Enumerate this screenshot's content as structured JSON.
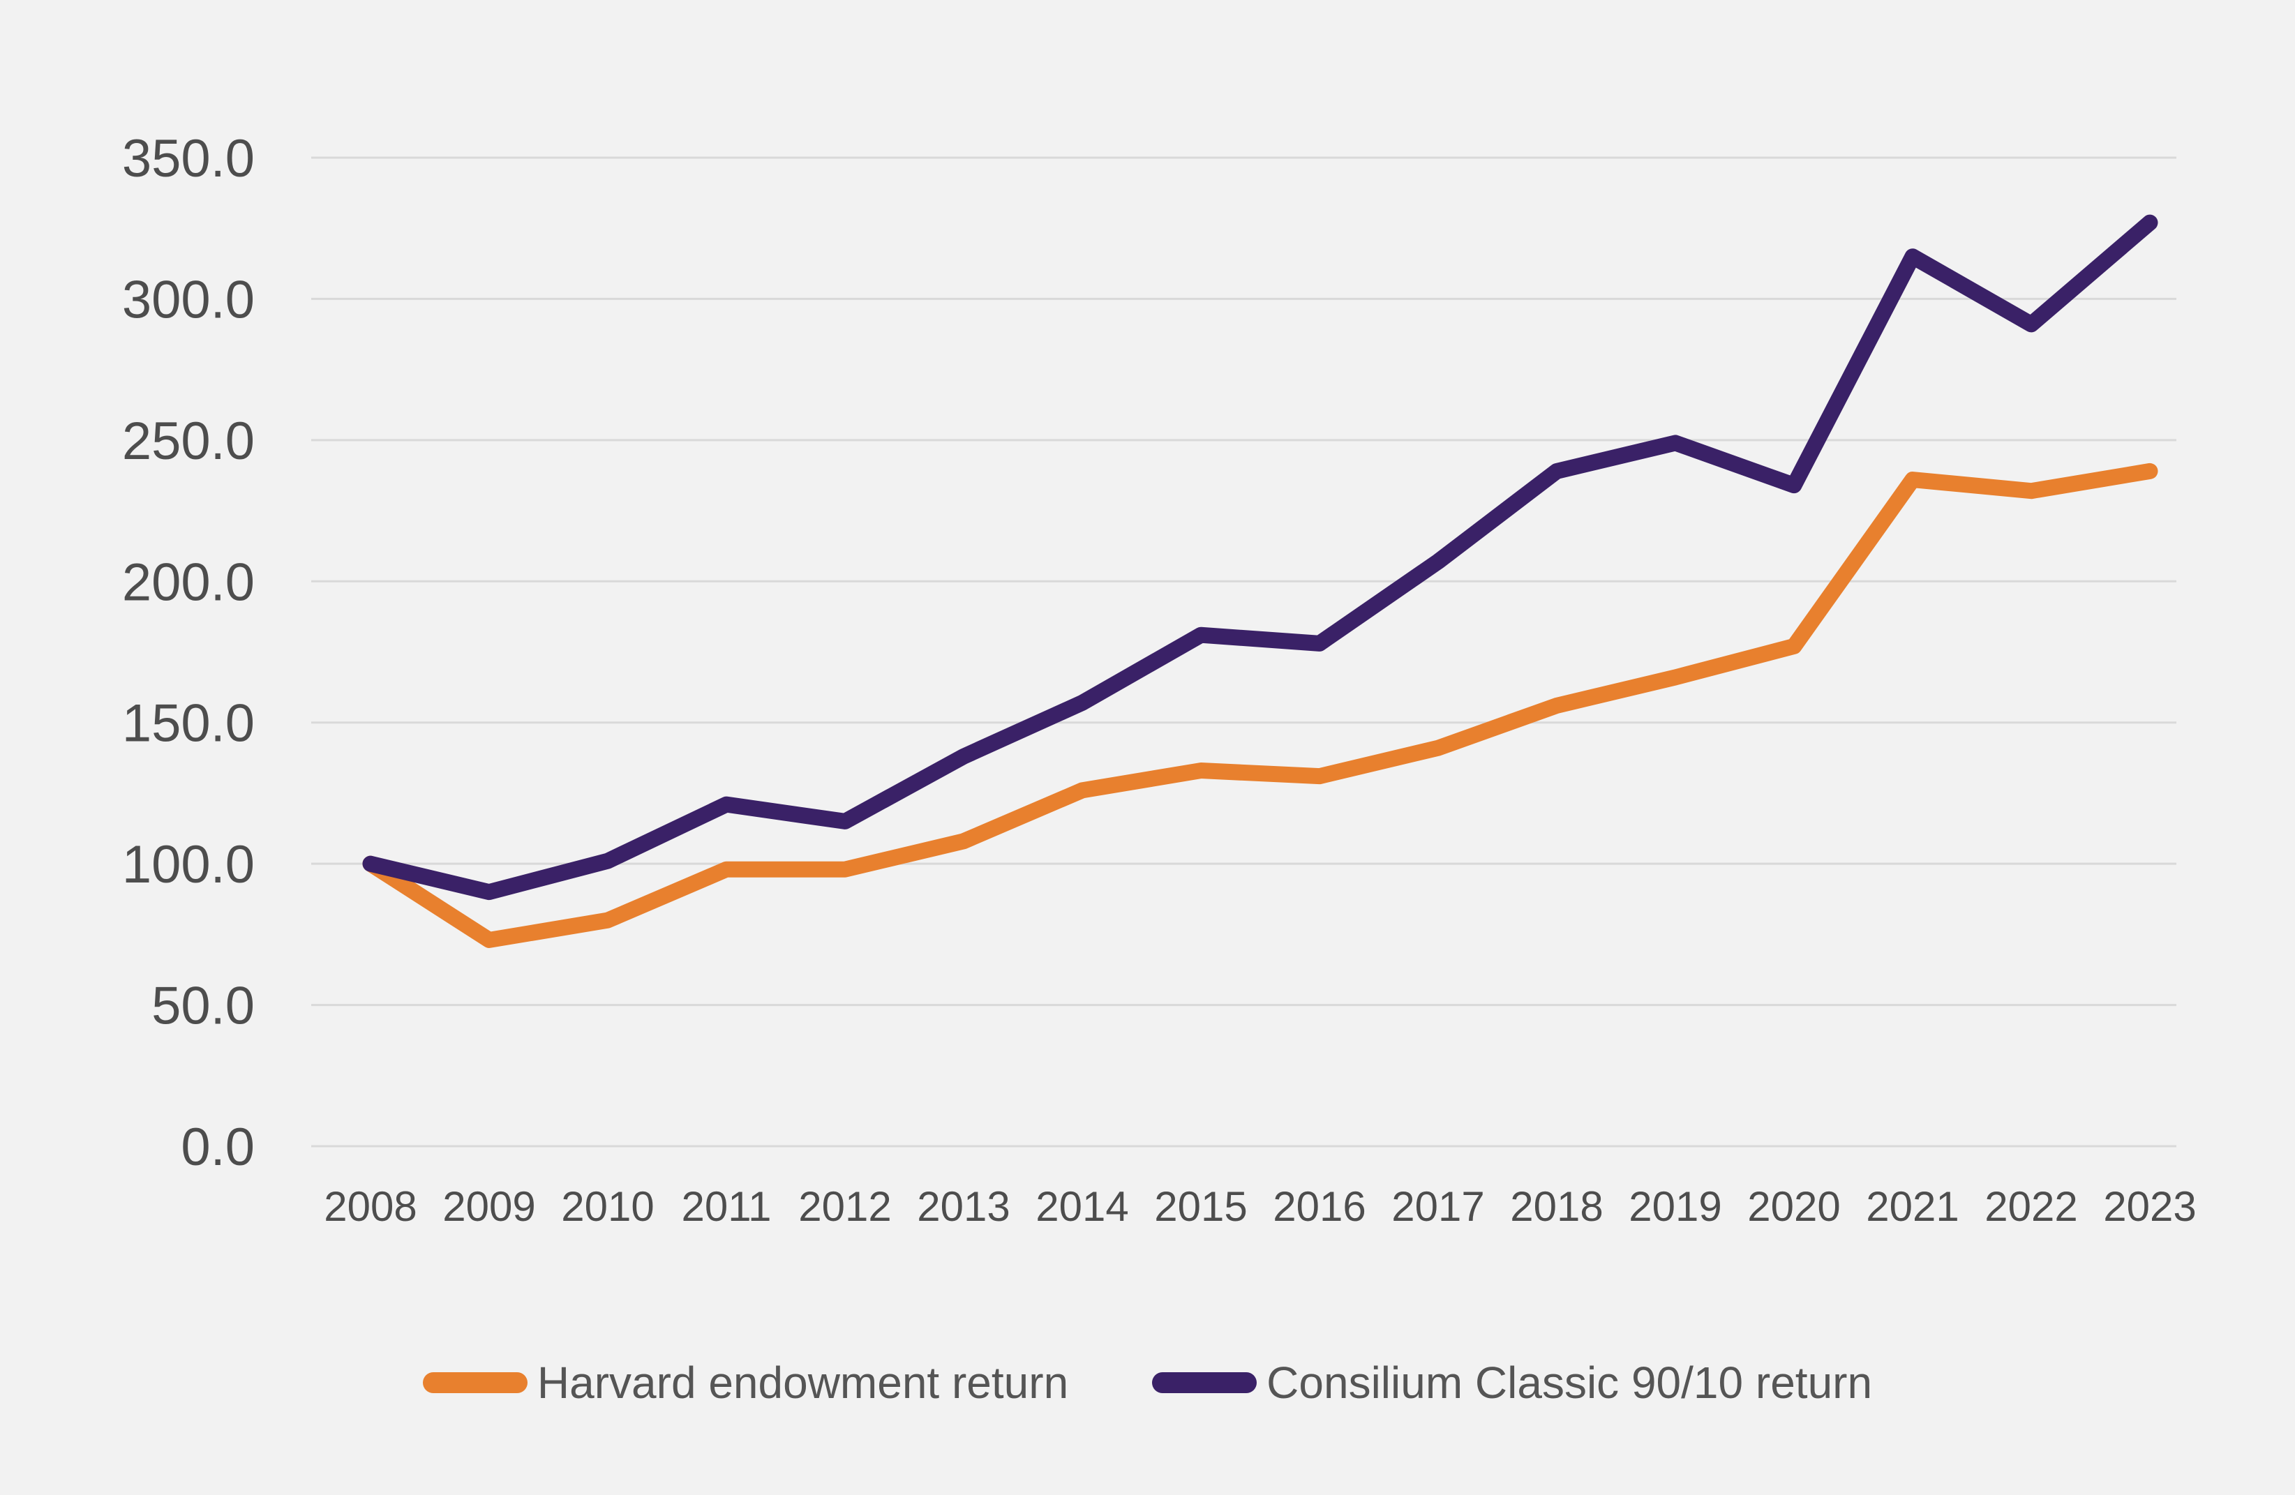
{
  "chart_data": {
    "type": "line",
    "title": "",
    "categories": [
      "2008",
      "2009",
      "2010",
      "2011",
      "2012",
      "2013",
      "2014",
      "2015",
      "2016",
      "2017",
      "2018",
      "2019",
      "2020",
      "2021",
      "2022",
      "2023"
    ],
    "series": [
      {
        "name": "Harvard endowment return",
        "color": "#E8802E",
        "values": [
          100,
          73,
          80,
          98,
          98,
          108,
          126,
          133,
          131,
          141,
          156,
          166,
          177,
          236,
          232,
          239
        ]
      },
      {
        "name": "Consilium Classic 90/10 return",
        "color": "#3A2167",
        "values": [
          100,
          90,
          101,
          121,
          115,
          138,
          157,
          181,
          178,
          207,
          239,
          249,
          234,
          315,
          291,
          327
        ]
      }
    ],
    "xlabel": "",
    "ylabel": "",
    "ylim": [
      0,
      350
    ],
    "yticks": [
      0,
      50,
      100,
      150,
      200,
      250,
      300,
      350
    ],
    "ytick_labels": [
      "0.0",
      "50.0",
      "100.0",
      "150.0",
      "200.0",
      "250.0",
      "300.0",
      "350.0"
    ],
    "grid": "horizontal",
    "legend_position": "bottom"
  },
  "colors": {
    "background": "#F2F2F2",
    "gridline": "#D9D9D9",
    "tick_text": "#4D4D4D",
    "legend_text": "#555555"
  }
}
